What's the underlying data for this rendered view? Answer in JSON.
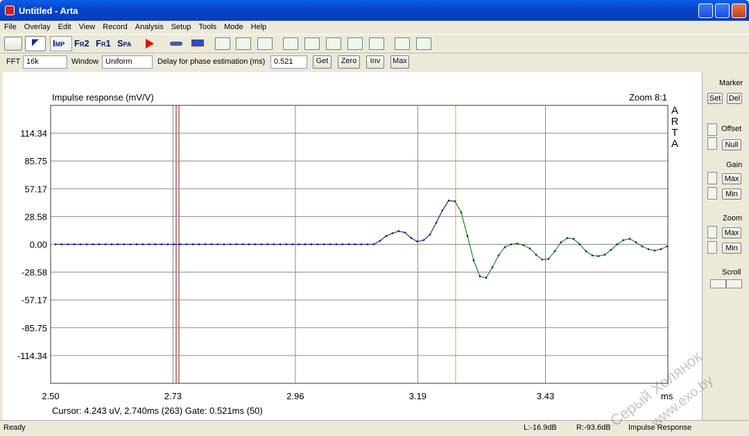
{
  "window": {
    "title": "Untitled - Arta"
  },
  "menu": [
    "File",
    "Overlay",
    "Edit",
    "View",
    "Record",
    "Analysis",
    "Setup",
    "Tools",
    "Mode",
    "Help"
  ],
  "toolbar": {
    "buttons": [
      "Imp",
      "Fr2",
      "Fr1",
      "Spa"
    ]
  },
  "controls": {
    "fft_label": "FFT",
    "fft": "16k",
    "window_label": "Window",
    "window": "Uniform",
    "delay_label": "Delay for phase estimation (ms)",
    "delay": "0.521",
    "buttons": [
      "Get",
      "Zero",
      "Inv",
      "Max"
    ]
  },
  "chart_data": {
    "type": "line",
    "title": "Impulse response (mV/V)",
    "annotation": "Zoom 8:1",
    "brand": "ARTA",
    "x_unit": "ms",
    "cursor_info": "Cursor: 4.243 uV, 2.740ms (263)  Gate: 0.521ms (50)",
    "xlim": [
      2.5,
      3.66
    ],
    "ylim": [
      -142.93,
      142.93
    ],
    "xticks": [
      {
        "value": 2.5,
        "label": "2.50"
      },
      2.73,
      2.96,
      3.19,
      3.43
    ],
    "yticks": [
      114.34,
      85.75,
      57.17,
      28.58,
      {
        "value": 0,
        "label": "0.00"
      },
      -28.58,
      -57.17,
      -85.75,
      -114.34
    ],
    "grid": true,
    "x": [
      2.5091,
      2.5208,
      2.5326,
      2.5443,
      2.556,
      2.5678,
      2.5795,
      2.5912,
      2.6029,
      2.6147,
      2.6264,
      2.6381,
      2.6499,
      2.6616,
      2.6733,
      2.6851,
      2.6968,
      2.7085,
      2.7202,
      2.732,
      2.7437,
      2.7554,
      2.7672,
      2.7789,
      2.7906,
      2.8024,
      2.8141,
      2.8258,
      2.8375,
      2.8493,
      2.861,
      2.8727,
      2.8845,
      2.8962,
      2.9079,
      2.9197,
      2.9314,
      2.9431,
      2.9548,
      2.9666,
      2.9783,
      2.99,
      3.0018,
      3.0135,
      3.0252,
      3.037,
      3.0487,
      3.0604,
      3.0721,
      3.0839,
      3.0956,
      3.1073,
      3.1191,
      3.1308,
      3.1425,
      3.1543,
      3.166,
      3.1777,
      3.1894,
      3.2012,
      3.2129,
      3.2246,
      3.2364,
      3.2481,
      3.2598,
      3.2716,
      3.2833,
      3.295,
      3.3067,
      3.3185,
      3.3302,
      3.3419,
      3.3537,
      3.3654,
      3.3771,
      3.3889,
      3.4006,
      3.4123,
      3.424,
      3.4358,
      3.4475,
      3.4592,
      3.471,
      3.4827,
      3.4944,
      3.5062,
      3.5179,
      3.5296,
      3.5413,
      3.5531,
      3.5648,
      3.5765,
      3.5883,
      3.6,
      3.6117,
      3.6235,
      3.6352,
      3.6469,
      3.6586
    ],
    "series": [
      {
        "color": "#1c1ca8",
        "color_after_cursor": "#1a8a1a",
        "marker_color": "#0a1a5a",
        "values": [
          0,
          0,
          0,
          0,
          0,
          0,
          0,
          0,
          0,
          0,
          0,
          0,
          0,
          0,
          0,
          0,
          0,
          0,
          0,
          0,
          0,
          0,
          0,
          0,
          0,
          0,
          0,
          0,
          0,
          0,
          0,
          0,
          0,
          0,
          0,
          0,
          0,
          0,
          0,
          0,
          0,
          0,
          0,
          0,
          0,
          0,
          0,
          0,
          0,
          0,
          0,
          0,
          3.6,
          8.6,
          11.4,
          13.6,
          12.1,
          6.4,
          2.9,
          4.3,
          10,
          22.2,
          35,
          45,
          44.3,
          32.9,
          8.6,
          -16.4,
          -32.9,
          -34.3,
          -23.6,
          -11.4,
          -2.9,
          0,
          0.7,
          -0.7,
          -4.3,
          -10.7,
          -15.7,
          -15,
          -7.1,
          2.1,
          6.4,
          5.7,
          0,
          -7.1,
          -11.4,
          -12.1,
          -10.7,
          -5.7,
          0,
          4.3,
          5.7,
          2.1,
          -2.1,
          -5,
          -6.4,
          -5,
          -2.1
        ]
      }
    ]
  },
  "side_panel": {
    "marker": "Marker",
    "set": "Set",
    "del": "Del",
    "offset": "Offset",
    "null": "Null",
    "gain": "Gain",
    "gain_max": "Max",
    "gain_min": "Min",
    "zoom": "Zoom",
    "zoom_max": "Max",
    "zoom_min": "Min",
    "scroll": "Scroll"
  },
  "status_bar": [
    "Ready",
    "L:-16.9dB",
    "R:-93.6dB",
    "Impulse Response"
  ],
  "watermark": [
    "Серый Холянок",
    "www.exo.by"
  ]
}
